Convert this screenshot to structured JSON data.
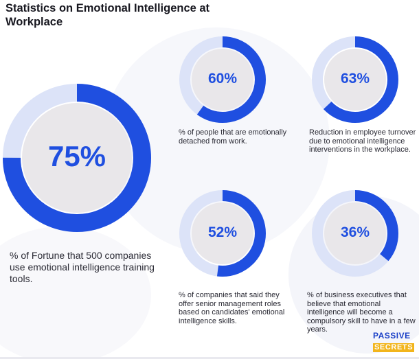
{
  "title": "Statistics on Emotional Intelligence at Workplace",
  "colors": {
    "accent": "#1f4fe0",
    "ring_track": "#dce3f8",
    "inner_fill": "#e9e7ea",
    "logo_blue": "#1a3fc7",
    "logo_yellow": "#f2b51c"
  },
  "stats": {
    "main": {
      "label": "75%",
      "value": 75,
      "caption": "% of Fortune that 500 companies use emotional intelligence training tools."
    },
    "s1": {
      "label": "60%",
      "value": 60,
      "caption": "% of people that are emotionally detached from work."
    },
    "s2": {
      "label": "63%",
      "value": 63,
      "caption": " Reduction in employee turnover due to emotional intelligence interventions in the workplace."
    },
    "s3": {
      "label": "52%",
      "value": 52,
      "caption": "% of companies that said they offer senior management roles based on candidates' emotional intelligence skills."
    },
    "s4": {
      "label": "36%",
      "value": 36,
      "caption": "% of business executives that believe that emotional intelligence will become a compulsory skill to have in a few years."
    }
  },
  "logo": {
    "line1": "PASSIVE",
    "line2": "SECRETS"
  }
}
